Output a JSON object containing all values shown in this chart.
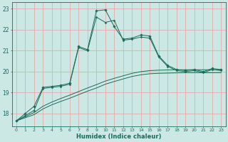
{
  "xlabel": "Humidex (Indice chaleur)",
  "bg_color": "#cce8e4",
  "grid_color": "#e8a0a0",
  "line_color": "#1a6b5a",
  "xlim": [
    -0.5,
    23.5
  ],
  "ylim": [
    17.4,
    23.3
  ],
  "xticks": [
    0,
    1,
    2,
    3,
    4,
    5,
    6,
    7,
    8,
    9,
    10,
    11,
    12,
    13,
    14,
    15,
    16,
    17,
    18,
    19,
    20,
    21,
    22,
    23
  ],
  "yticks": [
    18,
    19,
    20,
    21,
    22,
    23
  ],
  "s1_x": [
    0,
    1,
    2,
    3,
    4,
    5,
    6,
    7,
    8,
    9,
    10,
    11,
    12,
    13,
    14,
    15,
    16,
    17,
    18,
    19,
    20,
    21,
    22,
    23
  ],
  "s1_y": [
    17.65,
    18.0,
    18.35,
    19.25,
    19.3,
    19.35,
    19.45,
    21.2,
    21.05,
    22.9,
    22.95,
    22.15,
    21.55,
    21.6,
    21.75,
    21.7,
    20.75,
    20.3,
    20.1,
    20.05,
    20.1,
    20.0,
    20.15,
    20.1
  ],
  "s2_x": [
    0,
    1,
    2,
    3,
    4,
    5,
    6,
    7,
    8,
    9,
    10,
    11,
    12,
    13,
    14,
    15,
    16,
    17,
    18,
    19,
    20,
    21,
    22,
    23
  ],
  "s2_y": [
    17.65,
    17.9,
    18.15,
    19.2,
    19.25,
    19.3,
    19.4,
    21.15,
    21.0,
    22.6,
    22.35,
    22.45,
    21.5,
    21.55,
    21.65,
    21.6,
    20.7,
    20.25,
    20.05,
    20.0,
    20.05,
    19.95,
    20.1,
    20.05
  ],
  "s3_x": [
    0,
    1,
    2,
    3,
    4,
    5,
    6,
    7,
    8,
    9,
    10,
    11,
    12,
    13,
    14,
    15,
    16,
    17,
    18,
    19,
    20,
    21,
    22,
    23
  ],
  "s3_y": [
    17.65,
    17.85,
    18.05,
    18.35,
    18.55,
    18.72,
    18.88,
    19.05,
    19.22,
    19.38,
    19.55,
    19.68,
    19.8,
    19.92,
    20.0,
    20.05,
    20.07,
    20.08,
    20.09,
    20.09,
    20.09,
    20.09,
    20.09,
    20.09
  ],
  "s4_x": [
    0,
    1,
    2,
    3,
    4,
    5,
    6,
    7,
    8,
    9,
    10,
    11,
    12,
    13,
    14,
    15,
    16,
    17,
    18,
    19,
    20,
    21,
    22,
    23
  ],
  "s4_y": [
    17.65,
    17.8,
    17.95,
    18.22,
    18.42,
    18.58,
    18.73,
    18.9,
    19.07,
    19.22,
    19.4,
    19.53,
    19.65,
    19.77,
    19.85,
    19.9,
    19.92,
    19.93,
    19.94,
    19.95,
    19.95,
    19.95,
    19.95,
    19.95
  ]
}
